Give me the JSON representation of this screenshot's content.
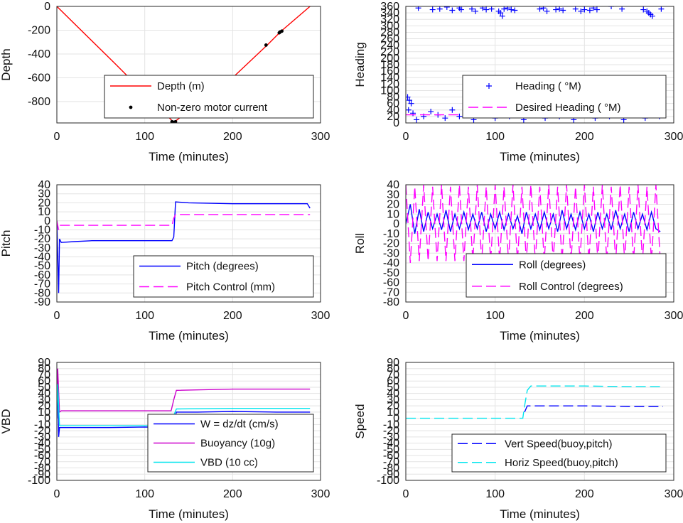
{
  "chart_data": [
    {
      "id": "depth",
      "type": "line",
      "xlabel": "Time (minutes)",
      "ylabel": "Depth",
      "xlim": [
        0,
        300
      ],
      "ylim": [
        -980,
        0
      ],
      "xticks": [
        0,
        100,
        200,
        300
      ],
      "yticks": [
        0,
        -200,
        -400,
        -600,
        -800
      ],
      "grid": true,
      "legend": "inside-bottom-right",
      "series": [
        {
          "name": "Depth (m)",
          "style": "line",
          "color": "#ff0000",
          "x": [
            0,
            66,
            133,
            200,
            240,
            255,
            288
          ],
          "y": [
            0,
            -480,
            -975,
            -600,
            -320,
            -210,
            0
          ]
        },
        {
          "name": "Non-zero motor current",
          "style": "dots",
          "color": "#000000",
          "x": [
            131,
            133,
            135,
            238,
            253,
            254,
            256
          ],
          "y": [
            -970,
            -975,
            -970,
            -325,
            -222,
            -215,
            -208
          ]
        }
      ]
    },
    {
      "id": "heading",
      "type": "scatter",
      "xlabel": "Time (minutes)",
      "ylabel": "Heading",
      "xlim": [
        0,
        300
      ],
      "ylim": [
        0,
        360
      ],
      "xticks": [
        0,
        100,
        200,
        300
      ],
      "yticks": [
        0,
        20,
        40,
        60,
        80,
        100,
        120,
        140,
        160,
        180,
        200,
        220,
        240,
        260,
        280,
        300,
        320,
        340,
        360
      ],
      "grid": true,
      "legend": "inside-bottom-right",
      "series": [
        {
          "name": "Heading (  °M)",
          "style": "plus",
          "color": "#0000ff",
          "x": [
            2,
            4,
            6,
            14,
            30,
            38,
            46,
            52,
            60,
            62,
            74,
            78,
            86,
            90,
            96,
            104,
            106,
            108,
            110,
            114,
            118,
            122,
            150,
            154,
            158,
            168,
            172,
            176,
            190,
            196,
            200,
            206,
            210,
            214,
            230,
            242,
            266,
            270,
            272,
            274,
            276,
            286,
            3,
            8,
            12,
            20,
            28,
            36,
            44,
            52,
            60,
            68,
            76,
            84,
            92,
            100,
            108,
            116,
            124,
            132,
            140,
            148,
            156,
            164,
            172,
            180,
            188,
            196,
            204,
            212,
            220,
            228,
            236,
            244,
            252,
            260,
            268,
            276,
            284
          ],
          "y": [
            80,
            70,
            60,
            355,
            350,
            352,
            358,
            348,
            355,
            350,
            352,
            345,
            355,
            350,
            352,
            345,
            340,
            330,
            352,
            355,
            350,
            348,
            352,
            355,
            345,
            350,
            352,
            348,
            352,
            345,
            350,
            348,
            355,
            350,
            360,
            352,
            350,
            345,
            340,
            335,
            330,
            352,
            40,
            30,
            10,
            20,
            35,
            25,
            15,
            40,
            20,
            30,
            10,
            35,
            25,
            15,
            40,
            20,
            30,
            10,
            35,
            25,
            15,
            40,
            20,
            30,
            10,
            35,
            25,
            15,
            40,
            20,
            30,
            10,
            35,
            25,
            15,
            40,
            20
          ]
        },
        {
          "name": "Desired Heading (  °M)",
          "style": "dashed",
          "color": "#ff00ff",
          "x": [
            0,
            290
          ],
          "y": [
            25,
            25
          ]
        }
      ]
    },
    {
      "id": "pitch",
      "type": "line",
      "xlabel": "Time (minutes)",
      "ylabel": "Pitch",
      "xlim": [
        0,
        300
      ],
      "ylim": [
        -90,
        40
      ],
      "xticks": [
        0,
        100,
        200,
        300
      ],
      "yticks": [
        40,
        30,
        20,
        10,
        0,
        -10,
        -20,
        -30,
        -40,
        -50,
        -60,
        -70,
        -80,
        -90
      ],
      "grid": true,
      "legend": "inside-bottom-right",
      "series": [
        {
          "name": "Pitch (degrees)",
          "style": "line",
          "color": "#0000ff",
          "x": [
            0,
            2,
            3,
            5,
            20,
            40,
            60,
            80,
            100,
            120,
            131,
            133,
            135,
            150,
            200,
            250,
            285,
            288
          ],
          "y": [
            0,
            -80,
            -20,
            -24,
            -23,
            -22,
            -22,
            -22,
            -22,
            -22,
            -22,
            -18,
            21,
            20,
            19,
            19,
            19,
            14
          ]
        },
        {
          "name": "Pitch Control (mm)",
          "style": "dashed",
          "color": "#ff00ff",
          "x": [
            0,
            2,
            3,
            10,
            60,
            131,
            133,
            135,
            200,
            288
          ],
          "y": [
            0,
            -10,
            -5,
            -5,
            -5,
            -5,
            3,
            7,
            7,
            7
          ]
        }
      ]
    },
    {
      "id": "roll",
      "type": "line",
      "xlabel": "Time (minutes)",
      "ylabel": "Roll",
      "xlim": [
        0,
        300
      ],
      "ylim": [
        -80,
        40
      ],
      "xticks": [
        0,
        100,
        200,
        300
      ],
      "yticks": [
        40,
        30,
        20,
        10,
        0,
        -10,
        -20,
        -30,
        -40,
        -50,
        -60,
        -70,
        -80
      ],
      "grid": true,
      "legend": "inside-bottom-right",
      "series": [
        {
          "name": "Roll (degrees)",
          "style": "line",
          "color": "#0000ff",
          "x": [
            0,
            5,
            10,
            15,
            20,
            25,
            30,
            35,
            40,
            45,
            50,
            55,
            60,
            65,
            70,
            75,
            80,
            85,
            90,
            95,
            100,
            105,
            110,
            115,
            120,
            125,
            130,
            135,
            140,
            145,
            150,
            155,
            160,
            165,
            170,
            175,
            180,
            185,
            190,
            195,
            200,
            205,
            210,
            215,
            220,
            225,
            230,
            235,
            240,
            245,
            250,
            255,
            260,
            265,
            270,
            275,
            280,
            285
          ],
          "y": [
            0,
            20,
            -10,
            15,
            -8,
            12,
            -5,
            10,
            -6,
            14,
            -8,
            10,
            -5,
            12,
            -6,
            10,
            -5,
            12,
            -8,
            10,
            -5,
            12,
            -6,
            10,
            -5,
            8,
            -10,
            12,
            -5,
            10,
            -6,
            12,
            -5,
            10,
            -8,
            14,
            -5,
            10,
            -6,
            12,
            -5,
            10,
            -8,
            12,
            -5,
            10,
            -6,
            14,
            -5,
            10,
            -8,
            12,
            -5,
            10,
            -6,
            12,
            -5,
            -8
          ]
        },
        {
          "name": "Roll Control (degrees)",
          "style": "dashed",
          "color": "#ff00ff",
          "x": [
            0,
            5,
            10,
            15,
            20,
            25,
            30,
            35,
            40,
            45,
            50,
            55,
            60,
            65,
            70,
            75,
            80,
            85,
            90,
            95,
            100,
            105,
            110,
            115,
            120,
            125,
            130,
            135,
            140,
            145,
            150,
            155,
            160,
            165,
            170,
            175,
            180,
            185,
            190,
            195,
            200,
            205,
            210,
            215,
            220,
            225,
            230,
            235,
            240,
            245,
            250,
            255,
            260,
            265,
            270,
            275,
            280,
            285
          ],
          "y": [
            40,
            -40,
            38,
            -38,
            40,
            -38,
            38,
            -38,
            40,
            -38,
            38,
            -38,
            40,
            -38,
            38,
            -38,
            40,
            -38,
            38,
            -38,
            40,
            -38,
            38,
            -38,
            40,
            -38,
            38,
            -38,
            40,
            -38,
            38,
            -38,
            40,
            -38,
            38,
            -38,
            40,
            -38,
            38,
            -38,
            40,
            -38,
            38,
            -38,
            40,
            -38,
            38,
            -38,
            40,
            -38,
            38,
            -38,
            40,
            -38,
            38,
            -38,
            40,
            -38
          ]
        }
      ]
    },
    {
      "id": "vbd",
      "type": "line",
      "xlabel": "Time (minutes)",
      "ylabel": "VBD",
      "xlim": [
        0,
        300
      ],
      "ylim": [
        -100,
        90
      ],
      "xticks": [
        0,
        100,
        200,
        300
      ],
      "yticks": [
        90,
        80,
        70,
        60,
        50,
        40,
        30,
        20,
        10,
        0,
        -10,
        -20,
        -30,
        -40,
        -50,
        -60,
        -70,
        -80,
        -90,
        -100
      ],
      "grid": true,
      "legend": "inside-bottom-right",
      "series": [
        {
          "name": "W = dz/dt (cm/s)",
          "style": "line",
          "color": "#0000ff",
          "x": [
            0,
            1,
            2,
            3,
            5,
            30,
            60,
            100,
            130,
            133,
            136,
            160,
            200,
            250,
            288
          ],
          "y": [
            0,
            60,
            -30,
            -15,
            -15,
            -15,
            -15,
            -14,
            -15,
            -5,
            10,
            10,
            11,
            10,
            10
          ]
        },
        {
          "name": "Buoyancy (10g)",
          "style": "line",
          "color": "#cc00cc",
          "x": [
            0,
            1,
            3,
            5,
            60,
            130,
            133,
            136,
            200,
            288
          ],
          "y": [
            0,
            80,
            10,
            12,
            12,
            12,
            30,
            45,
            47,
            47
          ]
        },
        {
          "name": "VBD (10 cc)",
          "style": "line",
          "color": "#00e5ee",
          "x": [
            0,
            1,
            3,
            5,
            60,
            130,
            133,
            136,
            200,
            288
          ],
          "y": [
            0,
            55,
            -12,
            -12,
            -12,
            -12,
            5,
            15,
            16,
            16
          ]
        }
      ]
    },
    {
      "id": "speed",
      "type": "line",
      "xlabel": "Time (minutes)",
      "ylabel": "Speed",
      "xlim": [
        0,
        300
      ],
      "ylim": [
        -100,
        90
      ],
      "xticks": [
        0,
        100,
        200,
        300
      ],
      "yticks": [
        90,
        80,
        70,
        60,
        50,
        40,
        30,
        20,
        10,
        0,
        -10,
        -20,
        -30,
        -40,
        -50,
        -60,
        -70,
        -80,
        -90,
        -100
      ],
      "grid": true,
      "legend": "inside-bottom-right",
      "series": [
        {
          "name": "Vert Speed(buoy,pitch)",
          "style": "dashed",
          "color": "#0000ff",
          "x": [
            133,
            136,
            140,
            200,
            250,
            288
          ],
          "y": [
            10,
            20,
            20,
            20,
            19,
            19
          ]
        },
        {
          "name": "Horiz Speed(buoy,pitch)",
          "style": "dashed",
          "color": "#00e5ee",
          "x": [
            0,
            50,
            100,
            131,
            133,
            136,
            140,
            200,
            250,
            288
          ],
          "y": [
            0,
            0,
            0,
            0,
            20,
            45,
            52,
            52,
            51,
            51
          ]
        }
      ]
    }
  ]
}
